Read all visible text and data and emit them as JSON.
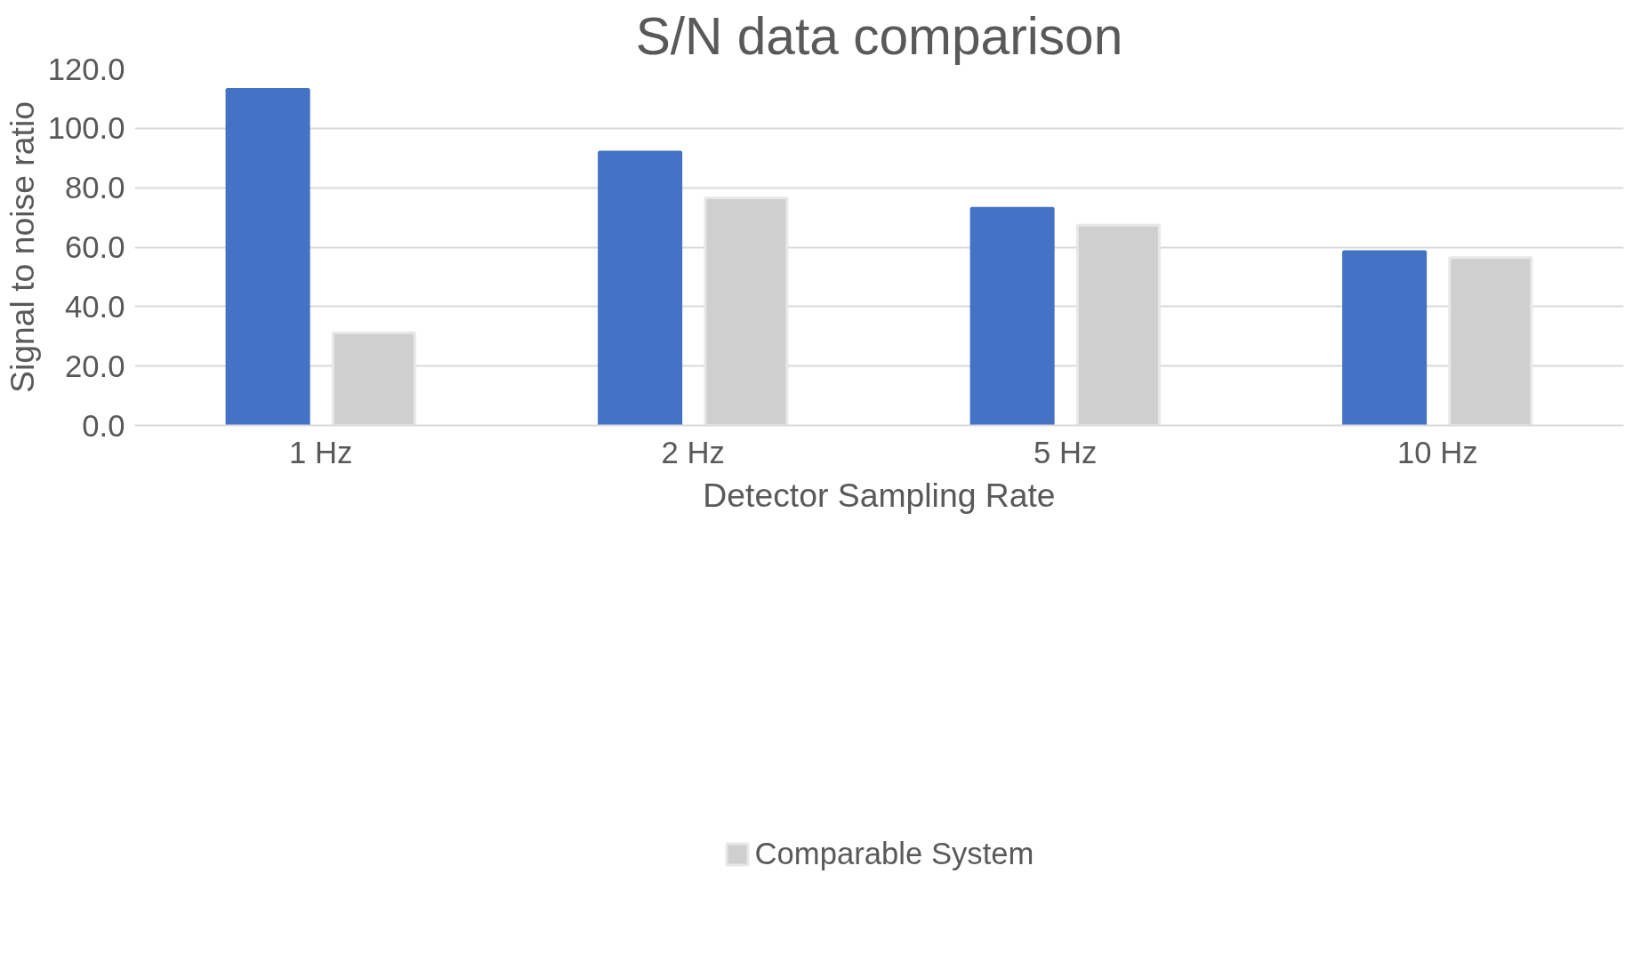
{
  "chart_data": {
    "type": "bar",
    "title": "S/N data comparison",
    "xlabel": "Detector Sampling Rate",
    "ylabel": "Signal to noise ratio",
    "categories": [
      "1 Hz",
      "2 Hz",
      "5 Hz",
      "10 Hz"
    ],
    "series": [
      {
        "color": "#4472c4",
        "values": [
          113.1,
          92.0,
          73.1,
          58.5
        ]
      },
      {
        "name": "Comparable System",
        "color": "#d0cfcf",
        "values": [
          31.2,
          76.6,
          67.4,
          56.5
        ]
      }
    ],
    "ylim": [
      0,
      120
    ],
    "yticks": [
      {
        "value": 0,
        "label": "0.0"
      },
      {
        "value": 20,
        "label": "20.0"
      },
      {
        "value": 40,
        "label": "40.0"
      },
      {
        "value": 60,
        "label": "60.0"
      },
      {
        "value": 80,
        "label": "80.0"
      },
      {
        "value": 100,
        "label": "100.0"
      },
      {
        "value": 120,
        "label": "120.0"
      }
    ],
    "grid": "y",
    "legend": "bottom"
  }
}
